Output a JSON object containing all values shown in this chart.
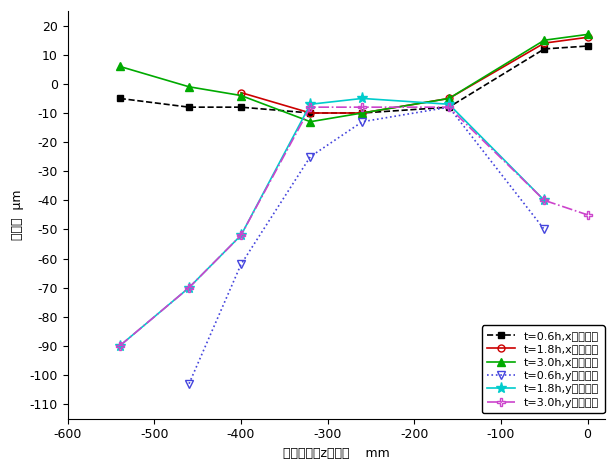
{
  "x": [
    -540,
    -460,
    -400,
    -320,
    -260,
    -160,
    -50,
    0
  ],
  "series": {
    "t06x": {
      "label": "t=0.6h,x向偏移量",
      "y": [
        -5,
        -8,
        -8,
        -10,
        -10,
        -8,
        12,
        13
      ],
      "color": "#000000",
      "linestyle": "--",
      "marker": "s",
      "markerfacecolor": "#000000",
      "markeredgecolor": "#000000",
      "markersize": 5,
      "linewidth": 1.2
    },
    "t18x": {
      "label": "t=1.8h,x向偏移量",
      "y": [
        null,
        null,
        -3,
        -10,
        -10,
        -5,
        14,
        16
      ],
      "color": "#cc0000",
      "linestyle": "-",
      "marker": "o",
      "markerfacecolor": "none",
      "markeredgecolor": "#cc0000",
      "markersize": 5,
      "linewidth": 1.2
    },
    "t30x": {
      "label": "t=3.0h,x向偏移量",
      "y": [
        6,
        -1,
        -4,
        -13,
        -10,
        -5,
        15,
        17
      ],
      "color": "#00aa00",
      "linestyle": "-",
      "marker": "^",
      "markerfacecolor": "#00aa00",
      "markeredgecolor": "#00aa00",
      "markersize": 6,
      "linewidth": 1.2
    },
    "t06y": {
      "label": "t=0.6h,y向偏移量",
      "y": [
        null,
        -103,
        -62,
        -25,
        -13,
        -8,
        -50,
        null
      ],
      "color": "#4444dd",
      "linestyle": ":",
      "marker": "v",
      "markerfacecolor": "none",
      "markeredgecolor": "#4444dd",
      "markersize": 6,
      "linewidth": 1.2
    },
    "t18y": {
      "label": "t=1.8h,y向偏移量",
      "y": [
        -90,
        -70,
        -52,
        -7,
        -5,
        -7,
        -40,
        null
      ],
      "color": "#00cccc",
      "linestyle": "-",
      "marker": "*",
      "markerfacecolor": "#00cccc",
      "markeredgecolor": "#00cccc",
      "markersize": 8,
      "linewidth": 1.2
    },
    "t30y": {
      "label": "t=3.0h,y向偏移量",
      "y": [
        -90,
        -70,
        -52,
        -8,
        -8,
        -8,
        -40,
        -45
      ],
      "color": "#cc44cc",
      "linestyle": "-.",
      "marker": "P",
      "markerfacecolor": "none",
      "markeredgecolor": "#cc44cc",
      "markersize": 6,
      "linewidth": 1.2
    }
  },
  "xlabel": "距主轴头的z向位置    mm",
  "ylabel": "偏移量  μm",
  "xlim": [
    -600,
    20
  ],
  "ylim": [
    -115,
    25
  ],
  "xticks": [
    -600,
    -500,
    -400,
    -300,
    -200,
    -100,
    0
  ],
  "yticks": [
    -110,
    -100,
    -90,
    -80,
    -70,
    -60,
    -50,
    -40,
    -30,
    -20,
    -10,
    0,
    10,
    20
  ],
  "background_color": "#ffffff"
}
